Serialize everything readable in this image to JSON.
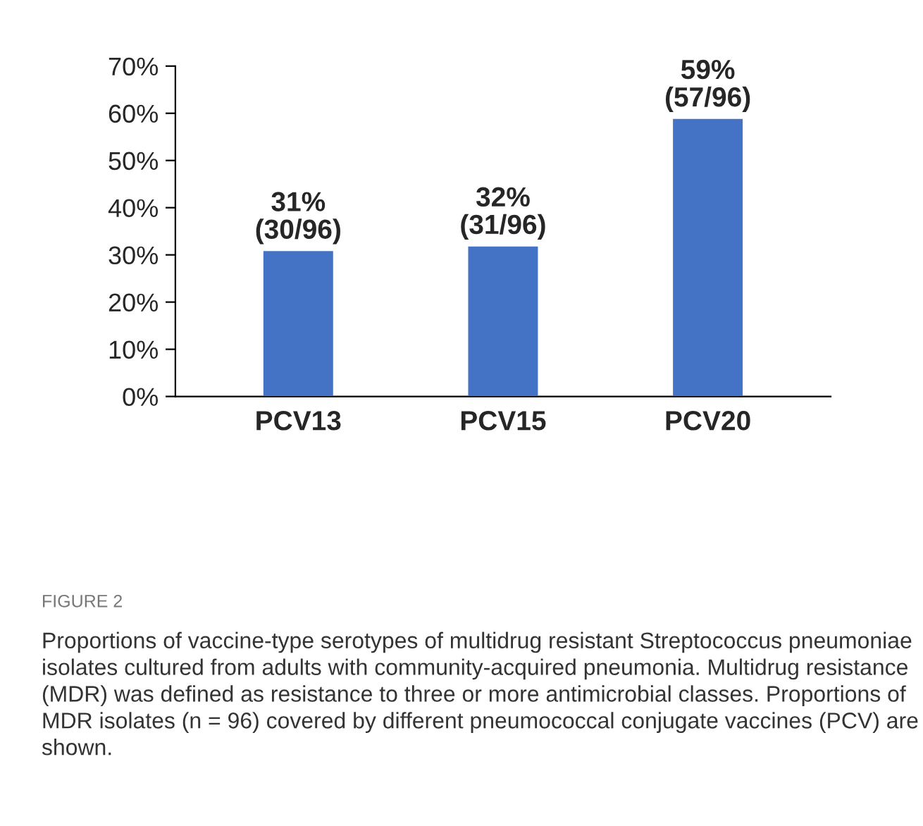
{
  "chart_data": {
    "type": "bar",
    "categories": [
      "PCV13",
      "PCV15",
      "PCV20"
    ],
    "values": [
      31,
      32,
      59
    ],
    "color": "#4472c4",
    "value_labels": [
      "31%\n(30/96)",
      "32%\n(31/96)",
      "59%\n(57/96)"
    ],
    "ylim": [
      0,
      70
    ],
    "yticks": [
      {
        "value": 0,
        "label": "0%"
      },
      {
        "value": 10,
        "label": "10%"
      },
      {
        "value": 20,
        "label": "20%"
      },
      {
        "value": 30,
        "label": "30%"
      },
      {
        "value": 40,
        "label": "40%"
      },
      {
        "value": 50,
        "label": "50%"
      },
      {
        "value": 60,
        "label": "60%"
      },
      {
        "value": 70,
        "label": "70%"
      }
    ],
    "grid": false,
    "annotations": [
      "FIGURE 2",
      "Proportions of vaccine-type serotypes of multidrug resistant Streptococcus pneumoniae isolates cultured from adults with community-acquired pneumonia. Multidrug resistance (MDR) was defined as resistance to three or more antimicrobial classes. Proportions of MDR isolates (n = 96) covered by different pneumococcal conjugate vaccines (PCV) are shown."
    ]
  }
}
